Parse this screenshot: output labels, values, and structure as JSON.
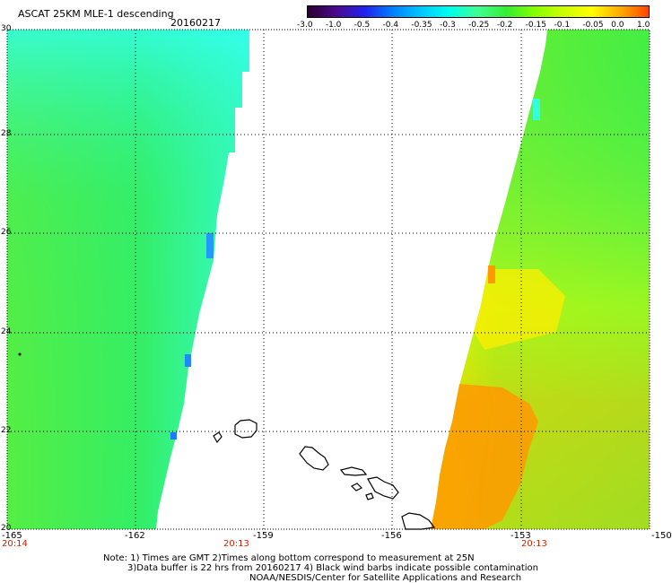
{
  "header": {
    "title": "ASCAT 25KM MLE-1 descending",
    "date": "20160217"
  },
  "colorbar": {
    "tick_labels": [
      "-3.0",
      "-1.0",
      "-0.5",
      "-0.4",
      "-0.35",
      "-0.3",
      "-0.25",
      "-0.2",
      "-0.15",
      "-0.1",
      "-0.05",
      "0.0",
      "1.0"
    ],
    "colors": [
      "#2a0030",
      "#4b0a8c",
      "#2222ee",
      "#0080ff",
      "#00c8ff",
      "#00ffee",
      "#40ff90",
      "#33ee33",
      "#88ff00",
      "#ccff00",
      "#ffff00",
      "#ffaa00",
      "#ff4400"
    ]
  },
  "map": {
    "lat_labels": [
      "30",
      "28",
      "26",
      "24",
      "22",
      "20"
    ],
    "lon_labels": [
      "-165",
      "-162",
      "-159",
      "-156",
      "-153",
      "-150"
    ],
    "time_labels": [
      "20:14",
      "20:13",
      "20:13"
    ],
    "colors": {
      "green": "#44ee44",
      "cyan": "#33ffee",
      "yellow": "#ffff00",
      "orange": "#ff9900",
      "coast": "#000000",
      "grid": "#000000",
      "time": "#cc2200"
    }
  },
  "footer": {
    "line1": "Note: 1) Times are GMT  2)Times along bottom correspond to measurement at 25N",
    "line2": "3)Data buffer is 22 hrs from 20160217  4) Black wind barbs indicate possible contamination",
    "line3": "NOAA/NESDIS/Center for Satellite Applications and Research"
  }
}
